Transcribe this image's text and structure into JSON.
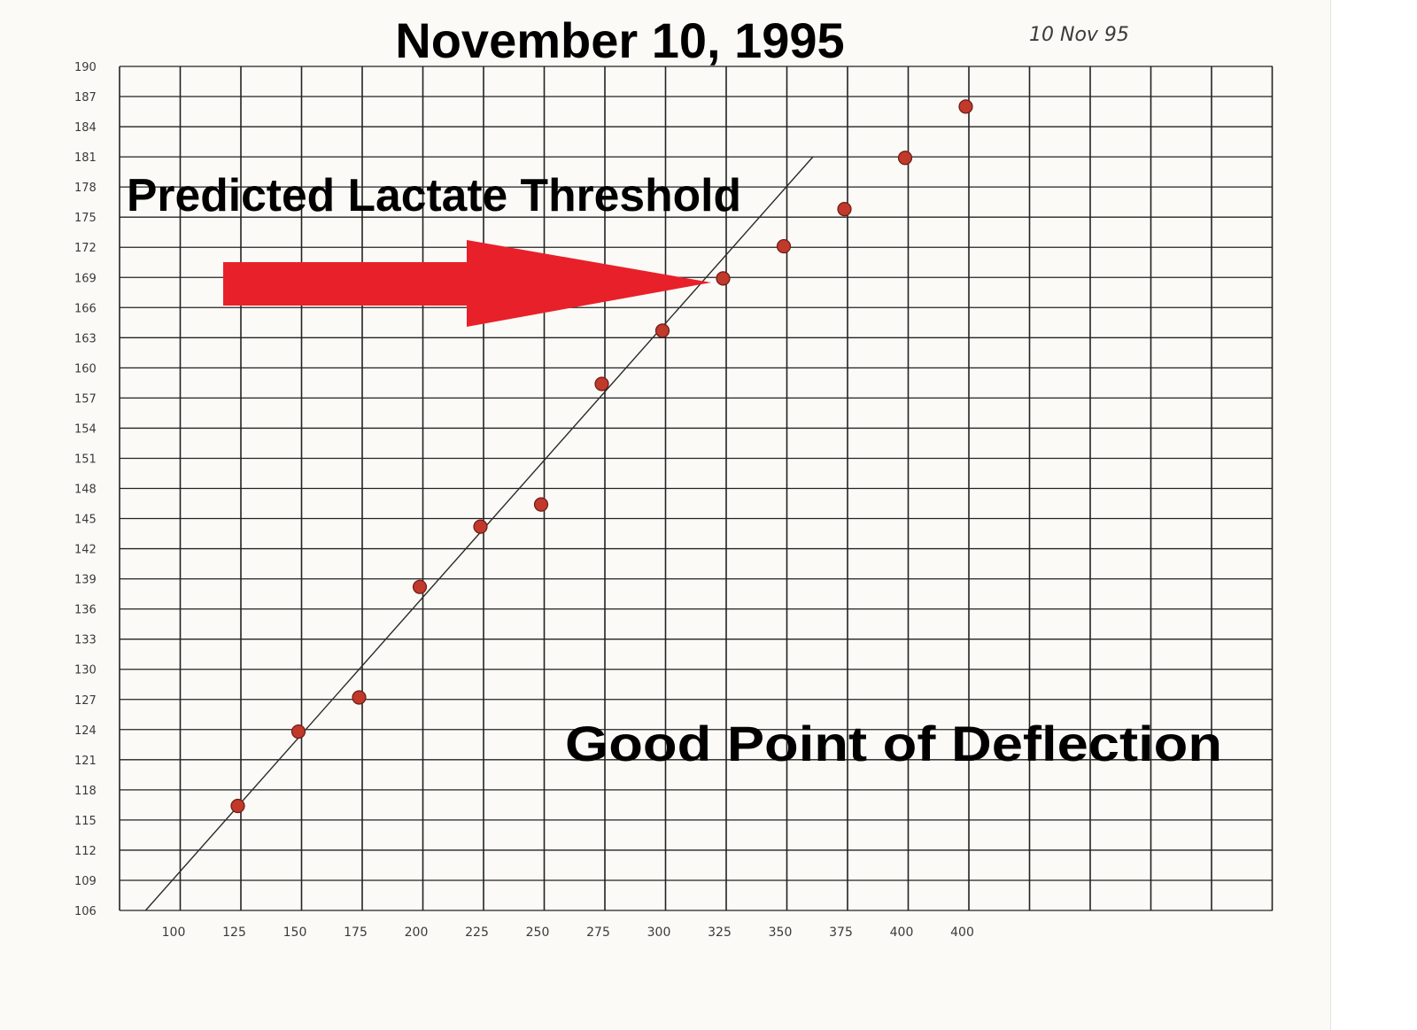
{
  "handwritten_date": "10 Nov 95",
  "chart_data": {
    "type": "scatter",
    "title": "November 10, 1995",
    "annotations": [
      "Predicted Lactate Threshold",
      "Good Point of Deflection"
    ],
    "xlabel": "",
    "ylabel": "",
    "x_tick_labels": [
      "100",
      "125",
      "150",
      "175",
      "200",
      "225",
      "250",
      "275",
      "300",
      "325",
      "350",
      "375",
      "400",
      "400"
    ],
    "y_tick_labels": [
      "190",
      "187",
      "184",
      "181",
      "178",
      "175",
      "172",
      "169",
      "166",
      "163",
      "160",
      "157",
      "154",
      "151",
      "148",
      "145",
      "142",
      "139",
      "136",
      "133",
      "130",
      "127",
      "124",
      "121",
      "118",
      "115",
      "112",
      "109",
      "106"
    ],
    "ylim": [
      106,
      190
    ],
    "grid": true,
    "points": [
      {
        "x": 125,
        "y": 116.4
      },
      {
        "x": 150,
        "y": 123.8
      },
      {
        "x": 175,
        "y": 127.2
      },
      {
        "x": 200,
        "y": 138.2
      },
      {
        "x": 225,
        "y": 144.2
      },
      {
        "x": 250,
        "y": 146.4
      },
      {
        "x": 275,
        "y": 158.4
      },
      {
        "x": 300,
        "y": 163.7
      },
      {
        "x": 325,
        "y": 168.9
      },
      {
        "x": 350,
        "y": 172.1
      },
      {
        "x": 375,
        "y": 175.8
      },
      {
        "x": 400,
        "y": 180.9
      },
      {
        "x": 425,
        "y": 186.0
      }
    ],
    "trend_line": {
      "x": [
        87,
        362
      ],
      "y": [
        106,
        181
      ]
    },
    "colors": {
      "points": "#c0392b",
      "arrow": "#e8202a",
      "grid": "#222222"
    }
  }
}
